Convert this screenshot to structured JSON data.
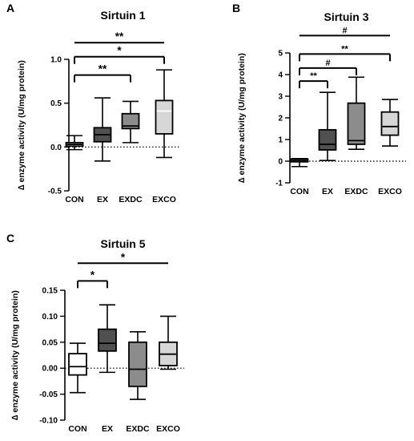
{
  "chart_data": [
    {
      "panel": "A",
      "type": "box",
      "title": "Sirtuin 1",
      "ylabel": "∆ enzyme activity (U/mg protein)",
      "ylim": [
        -0.5,
        1.0
      ],
      "yticks": [
        -0.5,
        0.0,
        0.5,
        1.0
      ],
      "ytick_labels": [
        "-0.5",
        "0.0",
        "0.5",
        "1.0"
      ],
      "zero_line": "dotted",
      "categories": [
        "CON",
        "EX",
        "EXDC",
        "EXCO"
      ],
      "fill_colors": [
        "#ffffff",
        "#505050",
        "#8c8c8c",
        "#d7d7d7"
      ],
      "median_colors": [
        "#000000",
        "#000000",
        "#000000",
        "#ffffff"
      ],
      "boxes": [
        {
          "min": -0.03,
          "q1": 0.01,
          "median": 0.03,
          "q3": 0.05,
          "max": 0.13
        },
        {
          "min": -0.16,
          "q1": 0.06,
          "median": 0.14,
          "q3": 0.22,
          "max": 0.56
        },
        {
          "min": 0.05,
          "q1": 0.21,
          "median": 0.24,
          "q3": 0.38,
          "max": 0.52
        },
        {
          "min": -0.12,
          "q1": 0.15,
          "median": 0.41,
          "q3": 0.53,
          "max": 0.88
        }
      ],
      "significance": [
        {
          "from": "CON",
          "to": "EXCO",
          "label": "**",
          "y": 1.19
        },
        {
          "from": "CON",
          "to": "EXCO",
          "label": "*",
          "y": 1.03
        },
        {
          "from": "CON",
          "to": "EXDC",
          "label": "**",
          "y": 0.82
        }
      ]
    },
    {
      "panel": "B",
      "type": "box",
      "title": "Sirtuin 3",
      "ylabel": "∆ enzyme activity (U/mg protein)",
      "ylim": [
        -1,
        5
      ],
      "yticks": [
        -1,
        0,
        1,
        2,
        3,
        4,
        5
      ],
      "ytick_labels": [
        "-1",
        "0",
        "1",
        "2",
        "3",
        "4",
        "5"
      ],
      "zero_line": "dotted",
      "categories": [
        "CON",
        "EX",
        "EXDC",
        "EXCO"
      ],
      "fill_colors": [
        "#ffffff",
        "#505050",
        "#8c8c8c",
        "#d7d7d7"
      ],
      "median_colors": [
        "#000000",
        "#000000",
        "#000000",
        "#000000"
      ],
      "boxes": [
        {
          "min": -0.25,
          "q1": -0.03,
          "median": 0.03,
          "q3": 0.1,
          "max": 0.12
        },
        {
          "min": 0.03,
          "q1": 0.52,
          "median": 0.78,
          "q3": 1.45,
          "max": 3.18
        },
        {
          "min": 0.55,
          "q1": 0.78,
          "median": 0.95,
          "q3": 2.68,
          "max": 3.88
        },
        {
          "min": 0.7,
          "q1": 1.2,
          "median": 1.6,
          "q3": 2.27,
          "max": 2.85
        }
      ],
      "significance": [
        {
          "from": "CON",
          "to": "EXCO",
          "label": "#",
          "y": 5.8
        },
        {
          "from": "CON",
          "to": "EXCO",
          "label": "**",
          "y": 4.95
        },
        {
          "from": "CON",
          "to": "EXDC",
          "label": "#",
          "y": 4.3
        },
        {
          "from": "CON",
          "to": "EX",
          "label": "**",
          "y": 3.7
        }
      ]
    },
    {
      "panel": "C",
      "type": "box",
      "title": "Sirtuin 5",
      "ylabel": "∆ enzyme activity (U/mg protein)",
      "ylim": [
        -0.1,
        0.15
      ],
      "yticks": [
        -0.1,
        -0.05,
        0.0,
        0.05,
        0.1,
        0.15
      ],
      "ytick_labels": [
        "-0.10",
        "-0.05",
        "0.00",
        "0.05",
        "0.10",
        "0.15"
      ],
      "zero_line": "dotted",
      "categories": [
        "CON",
        "EX",
        "EXDC",
        "EXCO"
      ],
      "fill_colors": [
        "#ffffff",
        "#505050",
        "#8c8c8c",
        "#d7d7d7"
      ],
      "median_colors": [
        "#000000",
        "#000000",
        "#000000",
        "#000000"
      ],
      "boxes": [
        {
          "min": -0.047,
          "q1": -0.013,
          "median": 0.003,
          "q3": 0.028,
          "max": 0.048
        },
        {
          "min": -0.008,
          "q1": 0.033,
          "median": 0.048,
          "q3": 0.075,
          "max": 0.122
        },
        {
          "min": -0.06,
          "q1": -0.035,
          "median": -0.002,
          "q3": 0.05,
          "max": 0.07
        },
        {
          "min": -0.002,
          "q1": 0.005,
          "median": 0.027,
          "q3": 0.05,
          "max": 0.1
        }
      ],
      "significance": [
        {
          "from": "CON",
          "to": "EXCO",
          "label": "*",
          "y": 0.202
        },
        {
          "from": "CON",
          "to": "EX",
          "label": "*",
          "y": 0.168
        }
      ]
    }
  ]
}
